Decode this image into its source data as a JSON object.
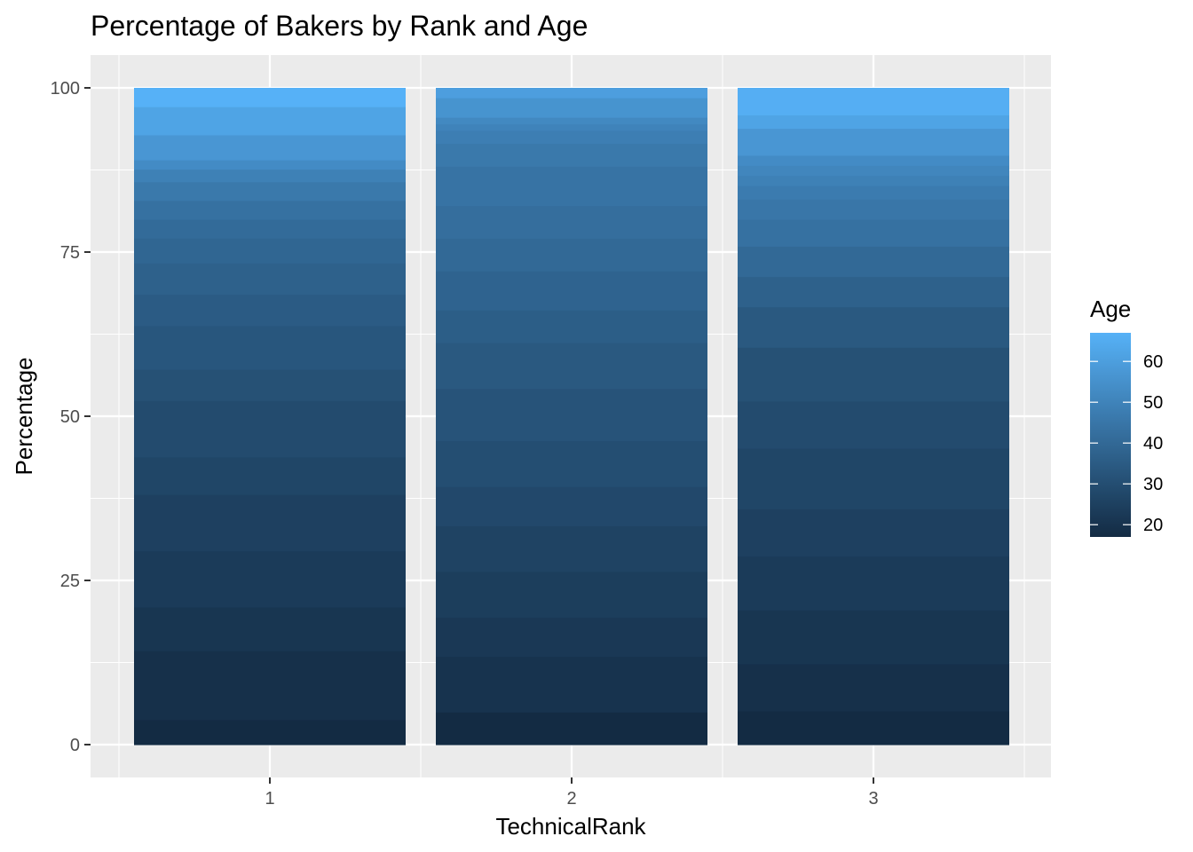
{
  "chart_data": {
    "type": "bar",
    "title": "Percentage of Bakers by Rank and Age",
    "xlabel": "TechnicalRank",
    "ylabel": "Percentage",
    "categories": [
      "1",
      "2",
      "3"
    ],
    "y_ticks": [
      0,
      25,
      50,
      75,
      100
    ],
    "ylim": [
      -5,
      105
    ],
    "stacked": true,
    "grid": true,
    "legend": {
      "title": "Age",
      "type": "colorbar",
      "position": "right",
      "ticks": [
        20,
        30,
        40,
        50,
        60
      ],
      "range": [
        17,
        67
      ],
      "low_color": "#132B43",
      "high_color": "#56B1F7"
    },
    "series": [
      {
        "category": "1",
        "segments": [
          {
            "age": 17,
            "value": 4
          },
          {
            "age": 19,
            "value": 11
          },
          {
            "age": 21,
            "value": 7
          },
          {
            "age": 23,
            "value": 9
          },
          {
            "age": 25,
            "value": 9
          },
          {
            "age": 27,
            "value": 6
          },
          {
            "age": 29,
            "value": 9
          },
          {
            "age": 31,
            "value": 5
          },
          {
            "age": 33,
            "value": 7
          },
          {
            "age": 35,
            "value": 5
          },
          {
            "age": 37,
            "value": 5
          },
          {
            "age": 39,
            "value": 4
          },
          {
            "age": 41,
            "value": 3
          },
          {
            "age": 43,
            "value": 3
          },
          {
            "age": 46,
            "value": 3
          },
          {
            "age": 49,
            "value": 2
          },
          {
            "age": 53,
            "value": 1.5
          },
          {
            "age": 57,
            "value": 4
          },
          {
            "age": 62,
            "value": 4.5
          },
          {
            "age": 67,
            "value": 3
          }
        ]
      },
      {
        "category": "2",
        "segments": [
          {
            "age": 17,
            "value": 5
          },
          {
            "age": 20,
            "value": 8.5
          },
          {
            "age": 22,
            "value": 6
          },
          {
            "age": 24,
            "value": 7
          },
          {
            "age": 26,
            "value": 7
          },
          {
            "age": 28,
            "value": 6
          },
          {
            "age": 30,
            "value": 7
          },
          {
            "age": 32,
            "value": 8
          },
          {
            "age": 34,
            "value": 7
          },
          {
            "age": 36,
            "value": 5
          },
          {
            "age": 38,
            "value": 6
          },
          {
            "age": 40,
            "value": 5
          },
          {
            "age": 42,
            "value": 5
          },
          {
            "age": 44,
            "value": 6
          },
          {
            "age": 46,
            "value": 3.5
          },
          {
            "age": 48,
            "value": 2
          },
          {
            "age": 50,
            "value": 1
          },
          {
            "age": 52,
            "value": 1
          },
          {
            "age": 56,
            "value": 3
          },
          {
            "age": 60,
            "value": 1.5
          }
        ]
      },
      {
        "category": "3",
        "segments": [
          {
            "age": 17,
            "value": 5
          },
          {
            "age": 19,
            "value": 7
          },
          {
            "age": 21,
            "value": 8
          },
          {
            "age": 23,
            "value": 8
          },
          {
            "age": 25,
            "value": 7
          },
          {
            "age": 27,
            "value": 9
          },
          {
            "age": 29,
            "value": 7
          },
          {
            "age": 31,
            "value": 8
          },
          {
            "age": 34,
            "value": 6
          },
          {
            "age": 37,
            "value": 4.5
          },
          {
            "age": 40,
            "value": 4.5
          },
          {
            "age": 43,
            "value": 4
          },
          {
            "age": 45,
            "value": 3
          },
          {
            "age": 47,
            "value": 2
          },
          {
            "age": 49,
            "value": 1.5
          },
          {
            "age": 51,
            "value": 1.5
          },
          {
            "age": 53,
            "value": 1.5
          },
          {
            "age": 57,
            "value": 4
          },
          {
            "age": 62,
            "value": 2
          },
          {
            "age": 66,
            "value": 4
          }
        ]
      }
    ]
  }
}
